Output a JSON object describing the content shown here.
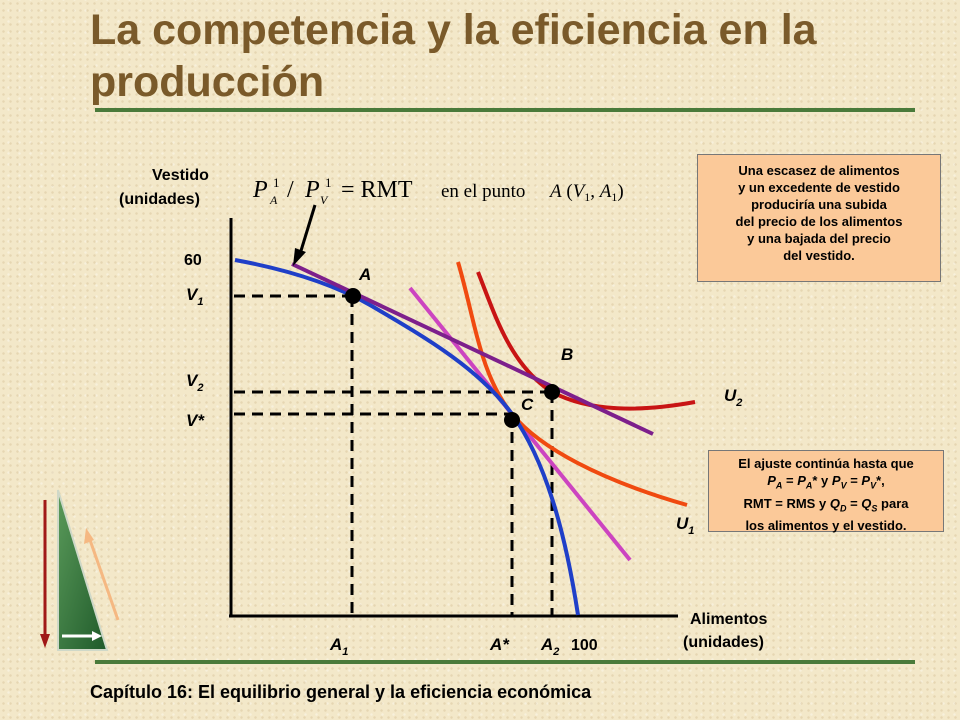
{
  "title": "La competencia y la eficiencia en la producción",
  "footer": "Capítulo 16: El equilibrio general y la eficiencia económica",
  "axes": {
    "y_label_line1": "Vestido",
    "y_label_line2": "(unidades)",
    "x_label_line1": "Alimentos",
    "x_label_line2": "(unidades)",
    "y_max_tick": "60",
    "x_max_tick": "100"
  },
  "formula": {
    "text": "= RMT",
    "suffix": "en el punto"
  },
  "points": {
    "A": "A",
    "B": "B",
    "C": "C"
  },
  "curves": {
    "U1": "U",
    "U2": "U"
  },
  "note1": {
    "lines": [
      "Una escasez de alimentos",
      "y un excedente de vestido",
      "produciría una subida",
      "del precio de los alimentos",
      "y una bajada del precio",
      "del vestido."
    ]
  },
  "note2": {
    "line1": "El ajuste continúa hasta que",
    "line3": "RMT = RMS y",
    "line3b": "para",
    "line4": "los alimentos y el vestido."
  },
  "colors": {
    "frontier": "#1f3fc8",
    "price_line_A": "#7d1f8c",
    "price_line_C": "#cc44c0",
    "indifference_U1": "#f04a10",
    "indifference_U2": "#c81414",
    "title": "#7a5a2a",
    "rule": "#4a7a3a",
    "note_bg": "#fbc999"
  },
  "icons": {
    "nav": "triangle-arrows-icon"
  }
}
